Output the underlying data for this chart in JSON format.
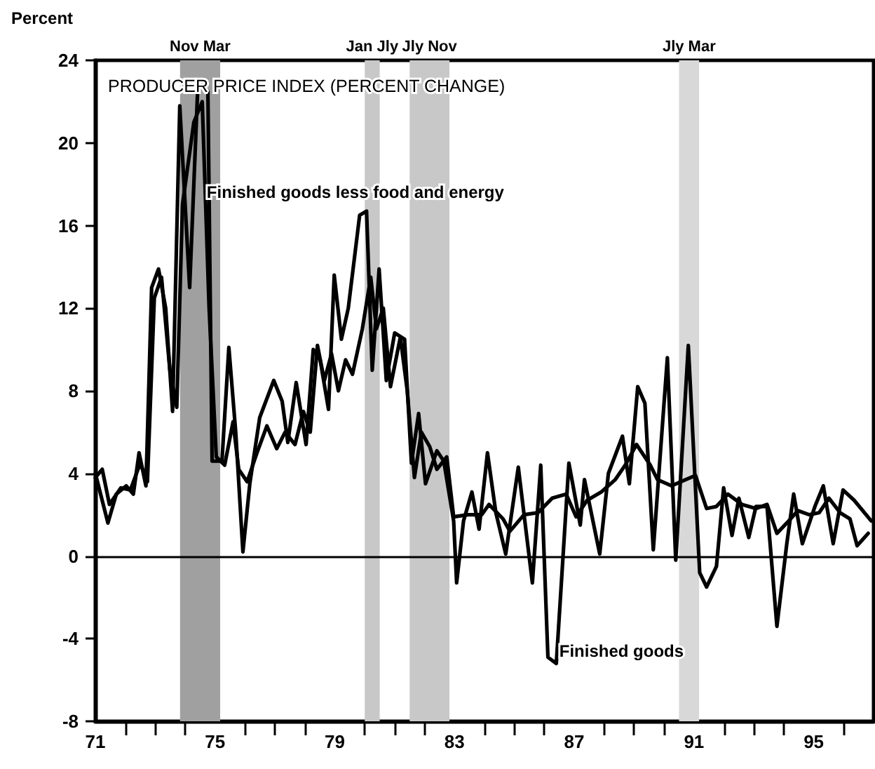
{
  "chart_data": {
    "type": "line",
    "title": "PRODUCER PRICE INDEX (PERCENT CHANGE)",
    "ylabel": "Percent",
    "xlim": [
      71,
      97
    ],
    "ylim": [
      -8,
      24
    ],
    "yticks": [
      -8,
      -4,
      0,
      4,
      8,
      12,
      16,
      20,
      24
    ],
    "xticks": [
      71,
      {
        "value": 72,
        "label": null
      },
      {
        "value": 73,
        "label": null
      },
      {
        "value": 74,
        "label": null
      },
      75,
      {
        "value": 76,
        "label": null
      },
      {
        "value": 77,
        "label": null
      },
      {
        "value": 78,
        "label": null
      },
      79,
      {
        "value": 80,
        "label": null
      },
      {
        "value": 81,
        "label": null
      },
      {
        "value": 82,
        "label": null
      },
      83,
      {
        "value": 84,
        "label": null
      },
      {
        "value": 85,
        "label": null
      },
      {
        "value": 86,
        "label": null
      },
      87,
      {
        "value": 88,
        "label": null
      },
      {
        "value": 89,
        "label": null
      },
      {
        "value": 90,
        "label": null
      },
      91,
      {
        "value": 92,
        "label": null
      },
      {
        "value": 93,
        "label": null
      },
      {
        "value": 94,
        "label": null
      },
      95,
      {
        "value": 96,
        "label": null
      }
    ],
    "grid": false,
    "legend": false,
    "line_style": "solid",
    "ref_lines": [
      {
        "axis": "y",
        "value": 0,
        "color": "#000000"
      }
    ],
    "bands": [
      {
        "axis": "x",
        "from": 73.83,
        "to": 75.17,
        "label": "Nov Mar",
        "color": "#a0a0a0"
      },
      {
        "axis": "x",
        "from": 80.0,
        "to": 80.5,
        "label": "Jan Jly",
        "color": "#c8c8c8"
      },
      {
        "axis": "x",
        "from": 81.5,
        "to": 82.83,
        "label": "Jly Nov",
        "color": "#c8c8c8"
      },
      {
        "axis": "x",
        "from": 90.5,
        "to": 91.17,
        "label": "Jly Mar",
        "color": "#d8d8d8"
      }
    ],
    "series": [
      {
        "name": "Finished goods less food and energy",
        "color": "#000000",
        "x": [
          71.0,
          71.23,
          71.47,
          71.85,
          72.17,
          72.5,
          72.74,
          72.97,
          73.21,
          73.49,
          73.72,
          73.91,
          74.29,
          74.57,
          74.8,
          75.04,
          75.32,
          75.6,
          75.79,
          76.07,
          76.4,
          76.73,
          77.06,
          77.34,
          77.67,
          77.95,
          78.18,
          78.42,
          78.65,
          78.89,
          79.12,
          79.36,
          79.59,
          79.92,
          80.2,
          80.39,
          80.62,
          80.86,
          81.19,
          81.42,
          81.66,
          81.89,
          82.17,
          82.41,
          82.74,
          82.97,
          83.44,
          83.91,
          84.15,
          84.62,
          84.85,
          85.32,
          85.79,
          86.26,
          86.73,
          87.06,
          87.43,
          87.9,
          88.37,
          88.7,
          89.08,
          89.54,
          89.78,
          90.25,
          90.72,
          91.05,
          91.42,
          91.75,
          92.13,
          92.6,
          93.07,
          93.44,
          93.77,
          94.1,
          94.47,
          94.85,
          95.18,
          95.51,
          95.88,
          96.21,
          96.45,
          96.82
        ],
        "values": [
          3.8,
          4.2,
          2.5,
          3.3,
          3.2,
          4.5,
          3.6,
          12.5,
          13.5,
          9.0,
          7.2,
          17.0,
          21.0,
          22.0,
          12.0,
          4.8,
          4.4,
          6.5,
          4.2,
          3.6,
          5.0,
          6.3,
          5.2,
          6.0,
          5.4,
          7.0,
          6.0,
          10.2,
          8.5,
          9.8,
          8.0,
          9.5,
          8.8,
          11.0,
          13.5,
          11.0,
          12.0,
          8.2,
          10.6,
          8.0,
          3.8,
          6.0,
          5.3,
          4.2,
          4.8,
          1.9,
          2.0,
          2.0,
          2.5,
          1.8,
          1.2,
          2.0,
          2.1,
          2.8,
          3.0,
          1.9,
          2.7,
          3.1,
          3.7,
          4.4,
          5.4,
          4.4,
          3.7,
          3.4,
          3.7,
          3.9,
          2.3,
          2.4,
          3.0,
          2.5,
          2.3,
          2.5,
          1.1,
          1.6,
          2.2,
          2.0,
          2.1,
          2.8,
          2.1,
          1.8,
          0.5,
          1.1
        ]
      },
      {
        "name": "Finished goods",
        "color": "#000000",
        "x": [
          71.0,
          71.42,
          71.7,
          72.03,
          72.27,
          72.46,
          72.69,
          72.88,
          73.11,
          73.35,
          73.58,
          73.82,
          74.15,
          74.43,
          74.76,
          74.9,
          75.23,
          75.46,
          75.69,
          75.93,
          76.16,
          76.49,
          76.96,
          77.24,
          77.43,
          77.71,
          78.04,
          78.28,
          78.51,
          78.79,
          78.98,
          79.22,
          79.45,
          79.83,
          80.06,
          80.25,
          80.48,
          80.72,
          81.0,
          81.33,
          81.56,
          81.8,
          82.03,
          82.41,
          82.64,
          82.97,
          83.07,
          83.3,
          83.58,
          83.82,
          84.1,
          84.38,
          84.71,
          85.13,
          85.6,
          85.88,
          86.12,
          86.4,
          86.82,
          87.2,
          87.34,
          87.85,
          88.14,
          88.61,
          88.84,
          89.12,
          89.36,
          89.64,
          90.11,
          90.39,
          90.81,
          91.19,
          91.42,
          91.75,
          91.99,
          92.27,
          92.5,
          92.83,
          93.07,
          93.44,
          93.77,
          94.1,
          94.33,
          94.62,
          95.04,
          95.32,
          95.65,
          95.98,
          96.35,
          96.92
        ],
        "values": [
          4.0,
          1.6,
          3.0,
          3.4,
          3.0,
          5.0,
          3.4,
          13.0,
          13.9,
          12.0,
          7.0,
          21.8,
          13.0,
          23.0,
          22.5,
          4.6,
          4.6,
          10.1,
          6.0,
          0.2,
          3.5,
          6.7,
          8.5,
          7.5,
          5.5,
          8.4,
          5.4,
          10.0,
          9.5,
          7.1,
          13.6,
          10.5,
          12.0,
          16.5,
          16.7,
          9.0,
          13.9,
          8.5,
          10.8,
          10.5,
          4.5,
          6.9,
          3.5,
          5.1,
          4.6,
          1.7,
          -1.3,
          1.7,
          3.1,
          1.3,
          5.0,
          2.1,
          0.1,
          4.3,
          -1.3,
          4.4,
          -4.9,
          -5.2,
          4.5,
          1.5,
          3.7,
          0.1,
          4.0,
          5.8,
          3.5,
          8.2,
          7.4,
          0.3,
          9.6,
          -0.2,
          10.2,
          -0.8,
          -1.5,
          -0.5,
          3.3,
          1.0,
          2.8,
          0.9,
          2.4,
          2.4,
          -3.4,
          0.6,
          3.0,
          0.6,
          2.4,
          3.4,
          0.6,
          3.2,
          2.7,
          1.7
        ]
      }
    ]
  }
}
